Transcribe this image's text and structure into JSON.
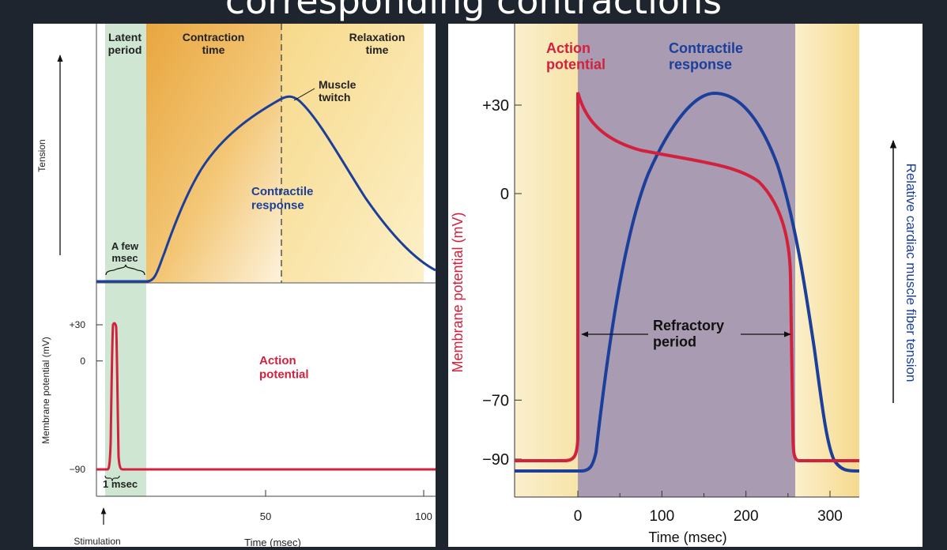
{
  "slide": {
    "title": "corresponding contractions"
  },
  "colors": {
    "background": "#1f252e",
    "action_potential": "#d2213d",
    "contractile": "#1b3f9a",
    "latent": "#cfe6d2",
    "contraction": "#ecae4f",
    "relaxation": "#f8e3a4",
    "refractory": "#a89bb2"
  },
  "skeletal": {
    "phases": {
      "latent": "Latent\nperiod",
      "contraction": "Contraction\ntime",
      "relaxation": "Relaxation\ntime"
    },
    "tension_label": "Tension",
    "muscle_twitch_label": "Muscle\ntwitch",
    "contractile_response_label": "Contractile\nresponse",
    "a_few_msec_label": "A few\nmsec",
    "action_potential_label": "Action\npotential",
    "one_msec_label": "1 msec",
    "membrane_axis_label": "Membrane potential (mV)",
    "stimulation_label": "Stimulation",
    "time_axis_label": "Time (msec)",
    "y_ticks": [
      {
        "label": "+30",
        "value": 30
      },
      {
        "label": "0",
        "value": 0
      },
      {
        "label": "−90",
        "value": -90
      }
    ],
    "x_ticks": [
      {
        "label": "50",
        "value": 50
      },
      {
        "label": "100",
        "value": 100
      }
    ]
  },
  "cardiac": {
    "action_potential_label": "Action\npotential",
    "contractile_response_label": "Contractile\nresponse",
    "refractory_label": "Refractory\nperiod",
    "left_axis_label": "Membrane potential (mV)",
    "right_axis_label": "Relative cardiac muscle fiber tension",
    "time_axis_label": "Time (msec)",
    "y_ticks": [
      {
        "label": "+30",
        "value": 30
      },
      {
        "label": "0",
        "value": 0
      },
      {
        "label": "−70",
        "value": -70
      },
      {
        "label": "−90",
        "value": -90
      }
    ],
    "x_ticks": [
      {
        "label": "0",
        "value": 0
      },
      {
        "label": "100",
        "value": 100
      },
      {
        "label": "200",
        "value": 200
      },
      {
        "label": "300",
        "value": 300
      }
    ]
  }
}
